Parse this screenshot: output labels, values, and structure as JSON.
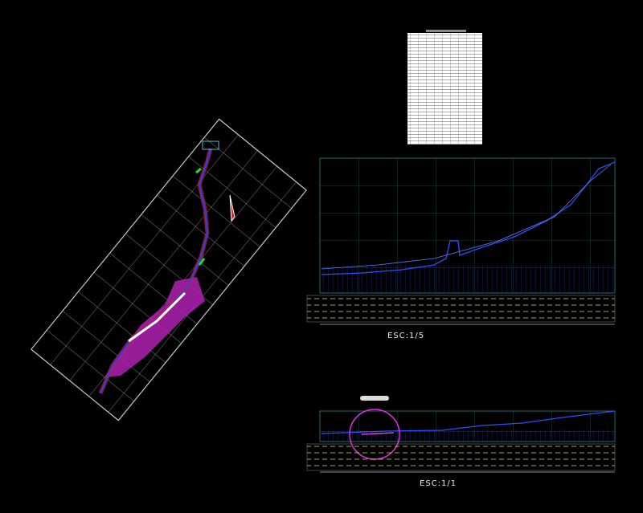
{
  "profiles": [
    {
      "scale_label": "ESC:1/5"
    },
    {
      "scale_label": "ESC:1/1"
    }
  ]
}
